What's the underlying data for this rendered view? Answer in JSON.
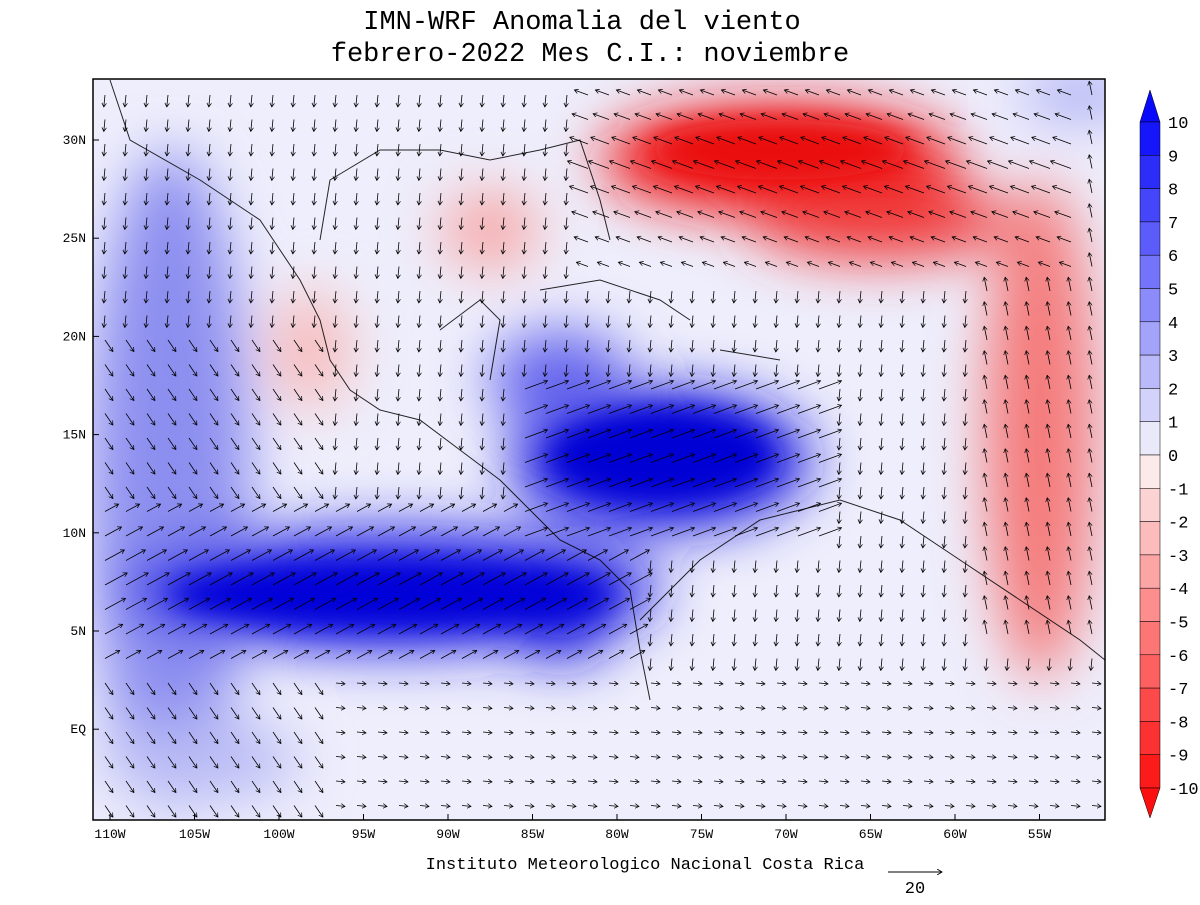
{
  "title": {
    "line1": "IMN-WRF Anomalia del viento",
    "line2": "febrero-2022 Mes C.I.: noviembre"
  },
  "map": {
    "lat_labels": [
      "30N",
      "25N",
      "20N",
      "15N",
      "10N",
      "5N",
      "EQ"
    ],
    "lon_labels": [
      "110W",
      "105W",
      "100W",
      "95W",
      "90W",
      "85W",
      "80W",
      "75W",
      "70W",
      "65W",
      "60W",
      "55W"
    ]
  },
  "colorbar": {
    "labels": [
      "10",
      "9",
      "8",
      "7",
      "6",
      "5",
      "4",
      "3",
      "2",
      "1",
      "0",
      "-1",
      "-2",
      "-3",
      "-4",
      "-5",
      "-6",
      "-7",
      "-8",
      "-9",
      "-10"
    ]
  },
  "footer": "Instituto Meteorologico Nacional Costa Rica",
  "reference_vector": "20"
}
